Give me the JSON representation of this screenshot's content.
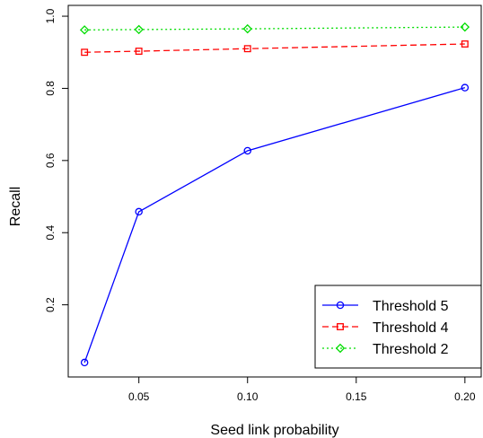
{
  "chart_data": {
    "type": "line",
    "xlabel": "Seed link probability",
    "ylabel": "Recall",
    "x": [
      0.025,
      0.05,
      0.1,
      0.2
    ],
    "xticks": [
      "0.05",
      "0.10",
      "0.15",
      "0.20"
    ],
    "xtick_values": [
      0.05,
      0.1,
      0.15,
      0.2
    ],
    "yticks": [
      "0.2",
      "0.4",
      "0.6",
      "0.8",
      "1.0"
    ],
    "ytick_values": [
      0.2,
      0.4,
      0.6,
      0.8,
      1.0
    ],
    "xlim": [
      0.0175,
      0.2075
    ],
    "ylim": [
      0.0,
      1.03
    ],
    "grid": false,
    "legend_position": "bottom-right",
    "series": [
      {
        "name": "Threshold 5",
        "values": [
          0.04,
          0.458,
          0.627,
          0.802
        ],
        "color": "#0000ff",
        "marker": "circle",
        "line": "solid"
      },
      {
        "name": "Threshold 4",
        "values": [
          0.9,
          0.903,
          0.91,
          0.923
        ],
        "color": "#ff0000",
        "marker": "square",
        "line": "dashed"
      },
      {
        "name": "Threshold 2",
        "values": [
          0.962,
          0.963,
          0.965,
          0.97
        ],
        "color": "#00dd00",
        "marker": "diamond",
        "line": "dotted"
      }
    ]
  }
}
